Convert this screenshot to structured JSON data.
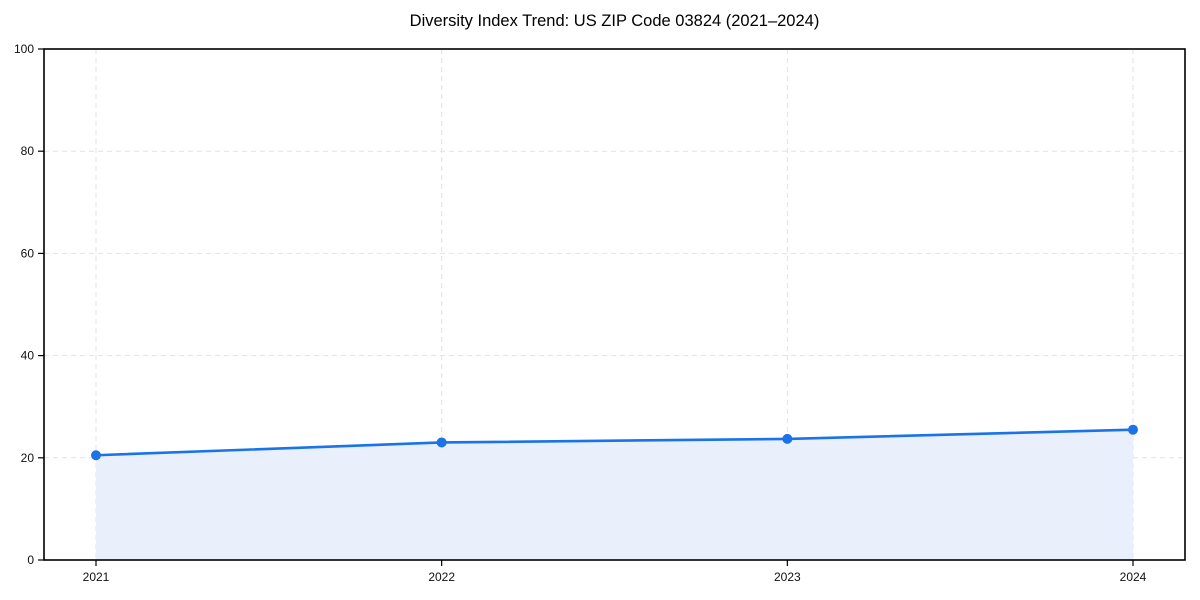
{
  "figure": {
    "title": "Diversity Index Trend: US ZIP Code 03824 (2021–2024)"
  },
  "chart_data": {
    "type": "line",
    "title": "Diversity Index Trend: US ZIP Code 03824 (2021–2024)",
    "x": [
      "2021",
      "2022",
      "2023",
      "2024"
    ],
    "series": [
      {
        "name": "Diversity Index",
        "values": [
          20.5,
          23.0,
          23.7,
          25.5
        ]
      }
    ],
    "xlabel": "",
    "ylabel": "",
    "ylim": [
      0,
      100
    ],
    "yticks": [
      0,
      20,
      40,
      60,
      80,
      100
    ],
    "xticks": [
      "2021",
      "2022",
      "2023",
      "2024"
    ],
    "grid": true,
    "grid_style": "dashed",
    "legend": "none",
    "area_fill": true,
    "markers": true,
    "colors": {
      "line": "#1a73e8",
      "marker": "#1a73e8",
      "fill": "#e9f0fc",
      "grid": "#e2e2e2",
      "spine": "#000000",
      "tick": "#000000",
      "text": "#111111",
      "background": "#ffffff"
    }
  }
}
